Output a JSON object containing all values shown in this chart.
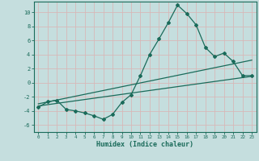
{
  "xlabel": "Humidex (Indice chaleur)",
  "ylabel": "",
  "xlim": [
    -0.5,
    23.5
  ],
  "ylim": [
    -7,
    11.5
  ],
  "xticks": [
    0,
    1,
    2,
    3,
    4,
    5,
    6,
    7,
    8,
    9,
    10,
    11,
    12,
    13,
    14,
    15,
    16,
    17,
    18,
    19,
    20,
    21,
    22,
    23
  ],
  "yticks": [
    -6,
    -4,
    -2,
    0,
    2,
    4,
    6,
    8,
    10
  ],
  "bg_color": "#c5dede",
  "grid_color": "#d8b8b8",
  "line_color": "#1a6b5a",
  "main_x": [
    0,
    1,
    2,
    3,
    4,
    5,
    6,
    7,
    8,
    9,
    10,
    11,
    12,
    13,
    14,
    15,
    16,
    17,
    18,
    19,
    20,
    21,
    22,
    23
  ],
  "main_y": [
    -3.5,
    -2.7,
    -2.5,
    -3.8,
    -4.0,
    -4.3,
    -4.7,
    -5.2,
    -4.5,
    -2.8,
    -1.7,
    1.0,
    4.0,
    6.2,
    8.5,
    11.0,
    9.8,
    8.2,
    5.0,
    3.7,
    4.2,
    3.0,
    1.0,
    1.0
  ],
  "line2_x": [
    0,
    23
  ],
  "line2_y": [
    -3.0,
    3.2
  ],
  "line3_x": [
    0,
    23
  ],
  "line3_y": [
    -3.3,
    0.9
  ]
}
